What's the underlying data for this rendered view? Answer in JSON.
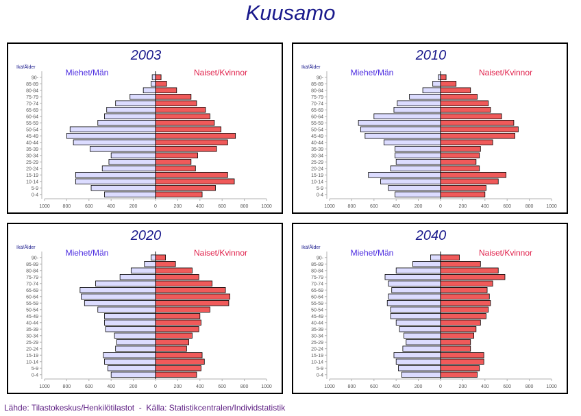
{
  "title": "Kuusamo",
  "source": "Lähde: Tilastokeskus/Henkilötilastot  -  Källa: Statistikcentralen/Individstatistik",
  "colors": {
    "male_fill": "#dcdcff",
    "female_fill": "#f05a5a",
    "male_label": "#4b2be0",
    "female_label": "#e0204a",
    "panel_title": "#1a1a8c"
  },
  "chart_data": [
    {
      "type": "bar",
      "title": "2003",
      "ylabel": "Ikä/Ålder",
      "categories": [
        "0-4",
        "5-9",
        "10-14",
        "15-19",
        "20-24",
        "25-29",
        "30-34",
        "35-39",
        "40-44",
        "45-49",
        "50-54",
        "55-59",
        "60-64",
        "65-69",
        "70-74",
        "75-79",
        "80-84",
        "85-89",
        "90-"
      ],
      "xticks": [
        "1000",
        "800",
        "600",
        "400",
        "200",
        "0",
        "200",
        "400",
        "600",
        "800",
        "1000"
      ],
      "xlim": [
        -1000,
        1000
      ],
      "series": [
        {
          "name": "Miehet/Män",
          "values": [
            460,
            580,
            720,
            720,
            480,
            420,
            400,
            590,
            740,
            800,
            770,
            520,
            460,
            440,
            360,
            230,
            110,
            40,
            30
          ]
        },
        {
          "name": "Naiset/Kvinnor",
          "values": [
            420,
            540,
            710,
            650,
            360,
            320,
            380,
            550,
            650,
            720,
            590,
            530,
            490,
            450,
            370,
            320,
            190,
            100,
            50
          ]
        }
      ]
    },
    {
      "type": "bar",
      "title": "2010",
      "ylabel": "Ikä/Ålder",
      "categories": [
        "0-4",
        "5-9",
        "10-14",
        "15-19",
        "20-24",
        "25-29",
        "30-34",
        "35-39",
        "40-44",
        "45-49",
        "50-54",
        "55-59",
        "60-64",
        "65-69",
        "70-74",
        "75-79",
        "80-84",
        "85-89",
        "90-"
      ],
      "xticks": [
        "1000",
        "800",
        "600",
        "400",
        "200",
        "0",
        "200",
        "400",
        "600",
        "800",
        "1000"
      ],
      "xlim": [
        -1000,
        1000
      ],
      "series": [
        {
          "name": "Miehet/Män",
          "values": [
            410,
            470,
            540,
            650,
            450,
            400,
            410,
            410,
            510,
            680,
            720,
            740,
            600,
            420,
            390,
            280,
            160,
            70,
            20
          ]
        },
        {
          "name": "Naiset/Kvinnor",
          "values": [
            400,
            410,
            520,
            590,
            350,
            320,
            350,
            360,
            470,
            670,
            700,
            660,
            550,
            450,
            430,
            330,
            270,
            140,
            50
          ]
        }
      ]
    },
    {
      "type": "bar",
      "title": "2020",
      "ylabel": "Ikä/Ålder",
      "categories": [
        "0-4",
        "5-9",
        "10-14",
        "15-19",
        "20-24",
        "25-29",
        "30-34",
        "35-39",
        "40-44",
        "45-49",
        "50-54",
        "55-59",
        "60-64",
        "65-69",
        "70-74",
        "75-79",
        "80-84",
        "85-89",
        "90-"
      ],
      "xticks": [
        "1000",
        "800",
        "600",
        "400",
        "200",
        "0",
        "200",
        "400",
        "600",
        "800",
        "1000"
      ],
      "xlim": [
        -1000,
        1000
      ],
      "series": [
        {
          "name": "Miehet/Män",
          "values": [
            400,
            430,
            460,
            470,
            360,
            350,
            370,
            450,
            460,
            460,
            520,
            640,
            670,
            680,
            540,
            320,
            220,
            100,
            40
          ]
        },
        {
          "name": "Naiset/Kvinnor",
          "values": [
            370,
            410,
            440,
            420,
            280,
            300,
            330,
            390,
            410,
            400,
            490,
            660,
            670,
            630,
            510,
            390,
            330,
            180,
            90
          ]
        }
      ]
    },
    {
      "type": "bar",
      "title": "2040",
      "ylabel": "Ikä/Ålder",
      "categories": [
        "0-4",
        "5-9",
        "10-14",
        "15-19",
        "20-24",
        "25-29",
        "30-34",
        "35-39",
        "40-44",
        "45-49",
        "50-54",
        "55-59",
        "60-64",
        "65-69",
        "70-74",
        "75-79",
        "80-84",
        "85-89",
        "90-"
      ],
      "xticks": [
        "1000",
        "800",
        "600",
        "400",
        "200",
        "0",
        "200",
        "400",
        "600",
        "800",
        "1000"
      ],
      "xlim": [
        -1000,
        1000
      ],
      "series": [
        {
          "name": "Miehet/Män",
          "values": [
            350,
            380,
            400,
            420,
            340,
            310,
            330,
            370,
            400,
            450,
            450,
            480,
            470,
            440,
            470,
            500,
            400,
            250,
            90
          ]
        },
        {
          "name": "Naiset/Kvinnor",
          "values": [
            330,
            350,
            390,
            390,
            270,
            270,
            300,
            320,
            360,
            410,
            430,
            450,
            440,
            420,
            470,
            580,
            520,
            360,
            170
          ]
        }
      ]
    }
  ]
}
